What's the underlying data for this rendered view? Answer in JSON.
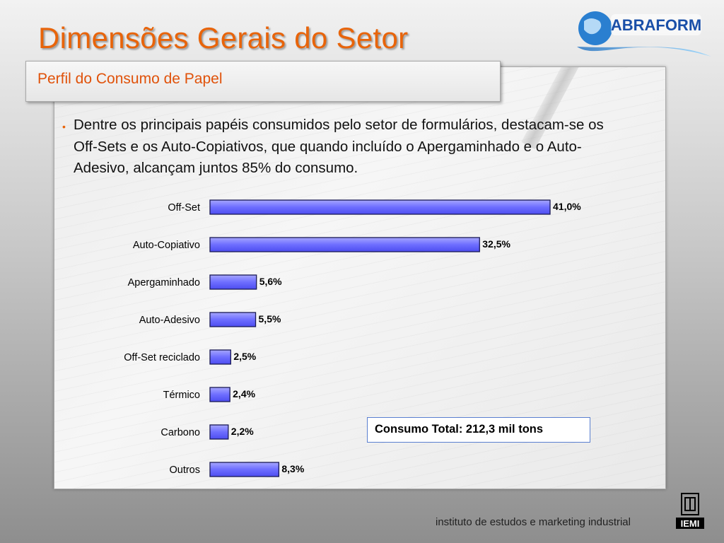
{
  "header": {
    "title": "Dimensões Gerais do Setor",
    "subtitle": "Perfil do Consumo de Papel",
    "logo_text": "ABRAFORM"
  },
  "body": {
    "bullet_symbol": "•",
    "bullet_text": "Dentre os principais papéis consumidos pelo setor de formulários, destacam-se os Off-Sets e os Auto-Copiativos, que quando incluído o Apergaminhado e o Auto-Adesivo, alcançam juntos 85% do consumo."
  },
  "chart_data": {
    "type": "bar",
    "orientation": "horizontal",
    "categories": [
      "Off-Set",
      "Auto-Copiativo",
      "Apergaminhado",
      "Auto-Adesivo",
      "Off-Set reciclado",
      "Térmico",
      "Carbono",
      "Outros"
    ],
    "values": [
      41.0,
      32.5,
      5.6,
      5.5,
      2.5,
      2.4,
      2.2,
      8.3
    ],
    "value_labels": [
      "41,0%",
      "32,5%",
      "5,6%",
      "5,5%",
      "2,5%",
      "2,4%",
      "2,2%",
      "8,3%"
    ],
    "unit": "%",
    "xlim": [
      0,
      41.0
    ],
    "grid": false,
    "bar_color": "#7a7aff",
    "bar_border_color": "#1a1a55"
  },
  "annotation": {
    "total": "Consumo Total: 212,3 mil tons"
  },
  "footer": {
    "text": "instituto de estudos e marketing industrial",
    "logo_text": "IEMI"
  },
  "colors": {
    "title": "#e8640a",
    "subtitle": "#e0520a",
    "annotation_border": "#5a7fd0"
  }
}
